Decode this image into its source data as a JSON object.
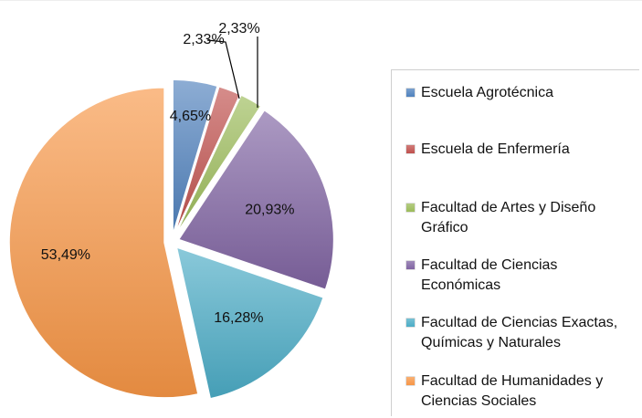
{
  "chart_data": {
    "type": "pie",
    "title": "",
    "categories": [
      "Escuela Agrotécnica",
      "Escuela de Enfermería",
      "Facultad de Artes y Diseño Gráfico",
      "Facultad de Ciencias Económicas",
      "Facultad de Ciencias Exactas, Químicas y Naturales",
      "Facultad de Humanidades y Ciencias Sociales"
    ],
    "values": [
      4.65,
      2.33,
      2.33,
      20.93,
      16.28,
      53.49
    ],
    "value_labels": [
      "4,65%",
      "2,33%",
      "2,33%",
      "20,93%",
      "16,28%",
      "53,49%"
    ],
    "colors": [
      "#4f81bd",
      "#c0504d",
      "#9bbb59",
      "#8064a2",
      "#4bacc6",
      "#f79646"
    ],
    "exploded": true,
    "legend_position": "right"
  },
  "legend": {
    "items": [
      {
        "lines": [
          "Escuela Agrotécnica"
        ]
      },
      {
        "lines": [
          "Escuela de Enfermería"
        ]
      },
      {
        "lines": [
          "Facultad de Artes y Diseño",
          "Gráfico"
        ]
      },
      {
        "lines": [
          "Facultad de Ciencias",
          "Económicas"
        ]
      },
      {
        "lines": [
          "Facultad de Ciencias Exactas,",
          "Químicas y Naturales"
        ]
      },
      {
        "lines": [
          "Facultad de Humanidades y",
          "Ciencias Sociales"
        ]
      }
    ]
  }
}
